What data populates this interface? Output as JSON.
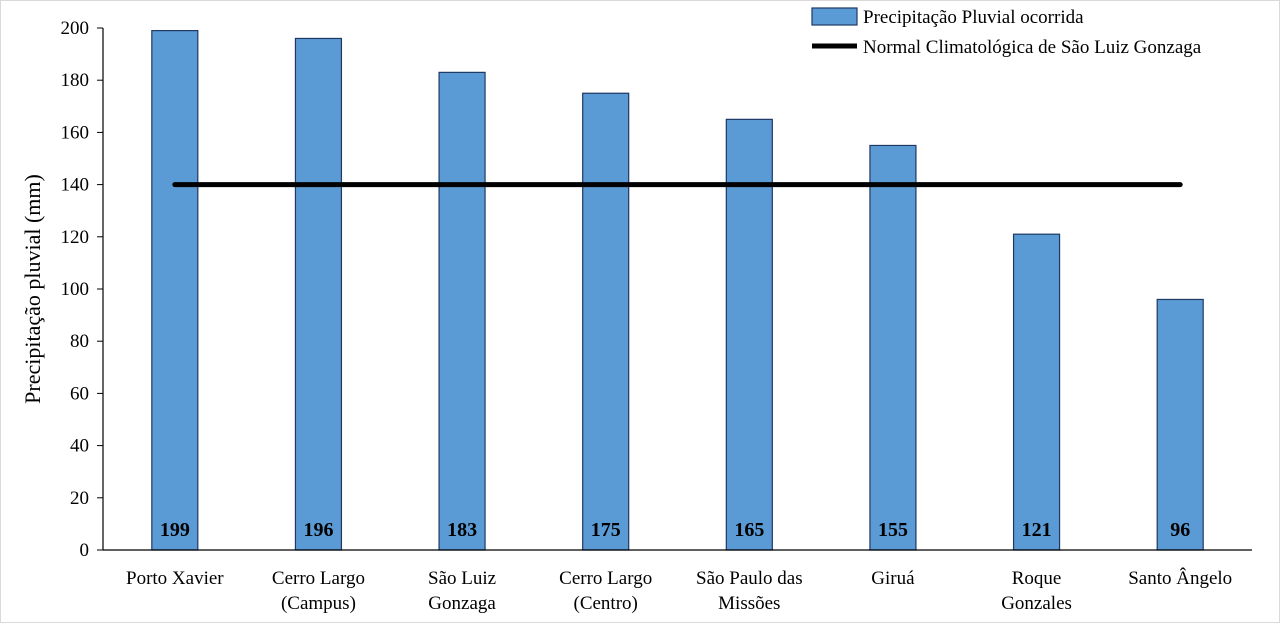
{
  "colors": {
    "bar_fill": "#5b9bd5",
    "bar_stroke": "#1f3864",
    "line": "#000000",
    "axis": "#000000"
  },
  "chart_data": {
    "type": "bar",
    "categories": [
      [
        "Porto Xavier"
      ],
      [
        "Cerro Largo",
        "(Campus)"
      ],
      [
        "São Luiz",
        "Gonzaga"
      ],
      [
        "Cerro Largo",
        "(Centro)"
      ],
      [
        "São Paulo das",
        "Missões"
      ],
      [
        "Giruá"
      ],
      [
        "Roque",
        "Gonzales"
      ],
      [
        "Santo Ângelo"
      ]
    ],
    "series": [
      {
        "name": "Precipitação Pluvial ocorrida",
        "type": "bar",
        "values": [
          199,
          196,
          183,
          175,
          165,
          155,
          121,
          96
        ]
      },
      {
        "name": "Normal Climatológica de São Luiz Gonzaga",
        "type": "line",
        "values": [
          140,
          140,
          140,
          140,
          140,
          140,
          140,
          140
        ]
      }
    ],
    "data_labels": [
      "199",
      "196",
      "183",
      "175",
      "165",
      "155",
      "121",
      "96"
    ],
    "ylabel": "Precipitação pluvial  (mm)",
    "ylim": [
      0,
      200
    ],
    "yticks": [
      0,
      20,
      40,
      60,
      80,
      100,
      120,
      140,
      160,
      180,
      200
    ],
    "grid": false,
    "legend_position": "top-right"
  }
}
